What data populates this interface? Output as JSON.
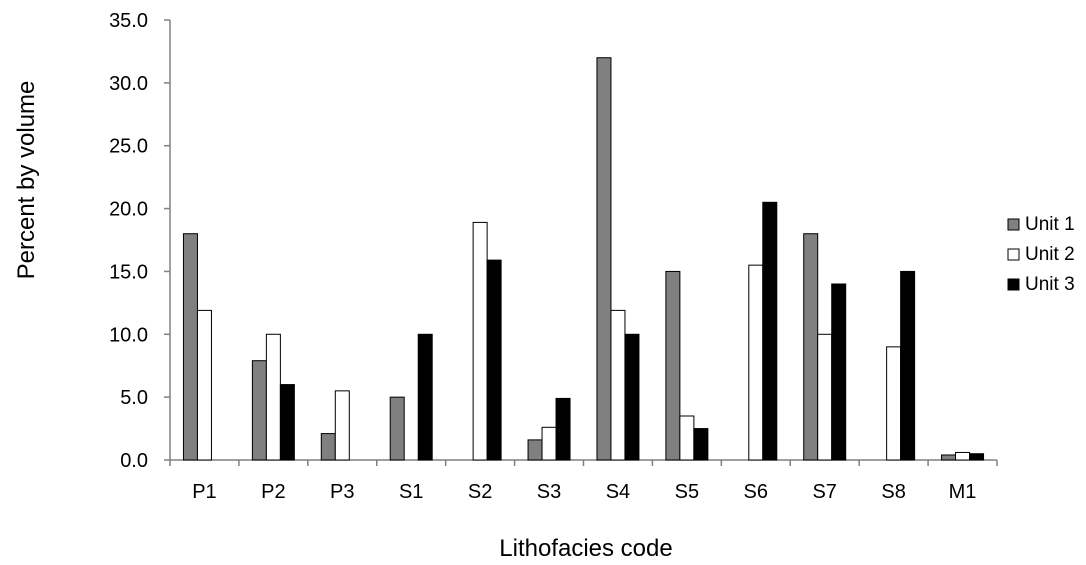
{
  "chart_data": {
    "type": "bar",
    "title": "",
    "xlabel": "Lithofacies code",
    "ylabel": "Percent by volume",
    "ylim": [
      0,
      35
    ],
    "yticks": [
      "0.0",
      "5.0",
      "10.0",
      "15.0",
      "20.0",
      "25.0",
      "30.0",
      "35.0"
    ],
    "categories": [
      "P1",
      "P2",
      "P3",
      "S1",
      "S2",
      "S3",
      "S4",
      "S5",
      "S6",
      "S7",
      "S8",
      "M1"
    ],
    "series": [
      {
        "name": "Unit 1",
        "color": "#808080",
        "values": [
          18.0,
          7.9,
          2.1,
          5.0,
          0,
          1.6,
          32.0,
          15.0,
          0,
          18.0,
          0,
          0.4
        ]
      },
      {
        "name": "Unit 2",
        "color": "#ffffff",
        "values": [
          11.9,
          10.0,
          5.5,
          0,
          18.9,
          2.6,
          11.9,
          3.5,
          15.5,
          10.0,
          9.0,
          0.6
        ]
      },
      {
        "name": "Unit 3",
        "color": "#000000",
        "values": [
          0,
          6.0,
          0,
          10.0,
          15.9,
          4.9,
          10.0,
          2.5,
          20.5,
          14.0,
          15.0,
          0.5
        ]
      }
    ],
    "grid": false,
    "legend_position": "right"
  }
}
